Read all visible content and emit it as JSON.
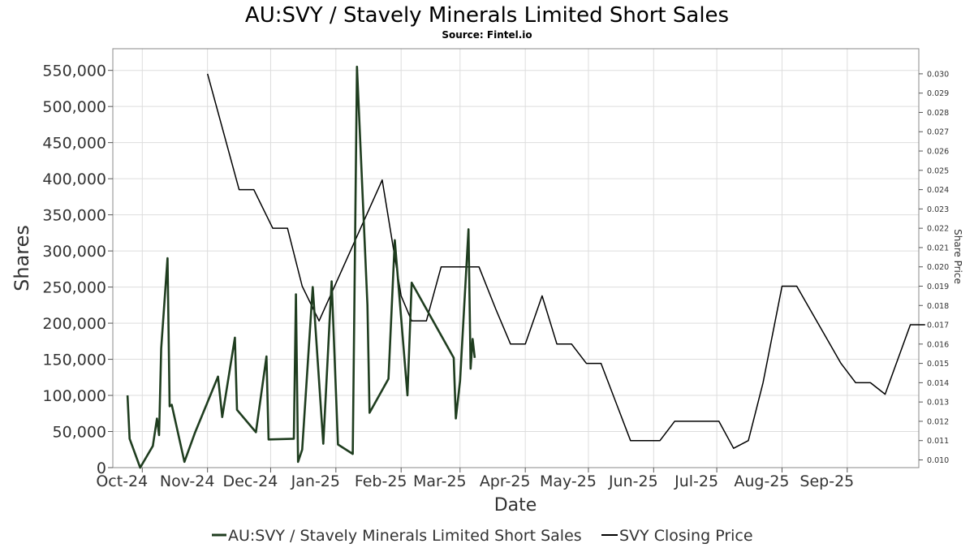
{
  "chart_data": {
    "type": "line",
    "title": "AU:SVY / Stavely Minerals Limited Short Sales",
    "subtitle": "Source: Fintel.io",
    "xlabel": "Date",
    "ylabel": "Shares",
    "y2label": "Share Price",
    "grid": true,
    "legend_placement": "bottom",
    "x_range": [
      "2024-09-17",
      "2025-10-05"
    ],
    "x_ticks": [
      {
        "date": "2024-10-01",
        "label": "Oct-24"
      },
      {
        "date": "2024-11-01",
        "label": "Nov-24"
      },
      {
        "date": "2024-12-01",
        "label": "Dec-24"
      },
      {
        "date": "2025-01-01",
        "label": "Jan-25"
      },
      {
        "date": "2025-02-01",
        "label": "Feb-25"
      },
      {
        "date": "2025-03-01",
        "label": "Mar-25"
      },
      {
        "date": "2025-04-01",
        "label": "Apr-25"
      },
      {
        "date": "2025-05-01",
        "label": "May-25"
      },
      {
        "date": "2025-06-01",
        "label": "Jun-25"
      },
      {
        "date": "2025-07-01",
        "label": "Jul-25"
      },
      {
        "date": "2025-08-01",
        "label": "Aug-25"
      },
      {
        "date": "2025-09-01",
        "label": "Sep-25"
      }
    ],
    "y_range": [
      0,
      580000
    ],
    "y_ticks": [
      {
        "value": 0,
        "label": "0"
      },
      {
        "value": 50000,
        "label": "50,000"
      },
      {
        "value": 100000,
        "label": "100,000"
      },
      {
        "value": 150000,
        "label": "150,000"
      },
      {
        "value": 200000,
        "label": "200,000"
      },
      {
        "value": 250000,
        "label": "250,000"
      },
      {
        "value": 300000,
        "label": "300,000"
      },
      {
        "value": 350000,
        "label": "350,000"
      },
      {
        "value": 400000,
        "label": "400,000"
      },
      {
        "value": 450000,
        "label": "450,000"
      },
      {
        "value": 500000,
        "label": "500,000"
      },
      {
        "value": 550000,
        "label": "550,000"
      }
    ],
    "y2_range": [
      0.0096,
      0.0313
    ],
    "y2_ticks": [
      {
        "value": 0.01,
        "label": "0.010"
      },
      {
        "value": 0.011,
        "label": "0.011"
      },
      {
        "value": 0.012,
        "label": "0.012"
      },
      {
        "value": 0.013,
        "label": "0.013"
      },
      {
        "value": 0.014,
        "label": "0.014"
      },
      {
        "value": 0.015,
        "label": "0.015"
      },
      {
        "value": 0.016,
        "label": "0.016"
      },
      {
        "value": 0.017,
        "label": "0.017"
      },
      {
        "value": 0.018,
        "label": "0.018"
      },
      {
        "value": 0.019,
        "label": "0.019"
      },
      {
        "value": 0.02,
        "label": "0.020"
      },
      {
        "value": 0.021,
        "label": "0.021"
      },
      {
        "value": 0.022,
        "label": "0.022"
      },
      {
        "value": 0.023,
        "label": "0.023"
      },
      {
        "value": 0.024,
        "label": "0.024"
      },
      {
        "value": 0.025,
        "label": "0.025"
      },
      {
        "value": 0.026,
        "label": "0.026"
      },
      {
        "value": 0.027,
        "label": "0.027"
      },
      {
        "value": 0.028,
        "label": "0.028"
      },
      {
        "value": 0.029,
        "label": "0.029"
      },
      {
        "value": 0.03,
        "label": "0.030"
      }
    ],
    "series": [
      {
        "name": "AU:SVY / Stavely Minerals Limited Short Sales",
        "axis": "left",
        "color": "#1f3d1f",
        "points": [
          [
            "2024-09-24",
            100000
          ],
          [
            "2024-09-25",
            40000
          ],
          [
            "2024-09-30",
            0
          ],
          [
            "2024-10-06",
            30000
          ],
          [
            "2024-10-08",
            68000
          ],
          [
            "2024-10-09",
            45000
          ],
          [
            "2024-10-10",
            165000
          ],
          [
            "2024-10-13",
            290000
          ],
          [
            "2024-10-14",
            85000
          ],
          [
            "2024-10-15",
            87000
          ],
          [
            "2024-10-21",
            8000
          ],
          [
            "2024-10-26",
            48000
          ],
          [
            "2024-11-06",
            126000
          ],
          [
            "2024-11-08",
            70000
          ],
          [
            "2024-11-14",
            180000
          ],
          [
            "2024-11-15",
            80000
          ],
          [
            "2024-11-24",
            49000
          ],
          [
            "2024-11-29",
            154000
          ],
          [
            "2024-11-30",
            39000
          ],
          [
            "2024-12-12",
            40000
          ],
          [
            "2024-12-13",
            240000
          ],
          [
            "2024-12-14",
            8000
          ],
          [
            "2024-12-16",
            25000
          ],
          [
            "2024-12-21",
            250000
          ],
          [
            "2024-12-26",
            33000
          ],
          [
            "2024-12-30",
            258000
          ],
          [
            "2025-01-02",
            32000
          ],
          [
            "2025-01-09",
            19000
          ],
          [
            "2025-01-11",
            555000
          ],
          [
            "2025-01-16",
            225000
          ],
          [
            "2025-01-17",
            76000
          ],
          [
            "2025-01-26",
            123000
          ],
          [
            "2025-01-29",
            315000
          ],
          [
            "2025-02-04",
            100000
          ],
          [
            "2025-02-06",
            256000
          ],
          [
            "2025-02-26",
            152000
          ],
          [
            "2025-02-27",
            68000
          ],
          [
            "2025-03-01",
            120000
          ],
          [
            "2025-03-05",
            330000
          ],
          [
            "2025-03-06",
            137000
          ],
          [
            "2025-03-07",
            178000
          ],
          [
            "2025-03-08",
            152000
          ]
        ]
      },
      {
        "name": "SVY Closing Price",
        "axis": "right",
        "color": "#000000",
        "points": [
          [
            "2024-11-01",
            0.03
          ],
          [
            "2024-11-16",
            0.024
          ],
          [
            "2024-11-23",
            0.024
          ],
          [
            "2024-12-02",
            0.022
          ],
          [
            "2024-12-09",
            0.022
          ],
          [
            "2024-12-16",
            0.019
          ],
          [
            "2024-12-24",
            0.0172
          ],
          [
            "2025-01-23",
            0.0245
          ],
          [
            "2025-02-01",
            0.0185
          ],
          [
            "2025-02-06",
            0.0172
          ],
          [
            "2025-02-13",
            0.0172
          ],
          [
            "2025-02-20",
            0.02
          ],
          [
            "2025-03-10",
            0.02
          ],
          [
            "2025-03-18",
            0.0178
          ],
          [
            "2025-03-25",
            0.016
          ],
          [
            "2025-04-01",
            0.016
          ],
          [
            "2025-04-09",
            0.0185
          ],
          [
            "2025-04-16",
            0.016
          ],
          [
            "2025-04-23",
            0.016
          ],
          [
            "2025-04-30",
            0.015
          ],
          [
            "2025-05-07",
            0.015
          ],
          [
            "2025-05-21",
            0.011
          ],
          [
            "2025-06-04",
            0.011
          ],
          [
            "2025-06-11",
            0.012
          ],
          [
            "2025-06-18",
            0.012
          ],
          [
            "2025-07-02",
            0.012
          ],
          [
            "2025-07-09",
            0.0106
          ],
          [
            "2025-07-16",
            0.011
          ],
          [
            "2025-07-23",
            0.014
          ],
          [
            "2025-08-01",
            0.019
          ],
          [
            "2025-08-08",
            0.019
          ],
          [
            "2025-08-29",
            0.015
          ],
          [
            "2025-09-05",
            0.014
          ],
          [
            "2025-09-12",
            0.014
          ],
          [
            "2025-09-19",
            0.0134
          ],
          [
            "2025-10-01",
            0.017
          ],
          [
            "2025-10-08",
            0.017
          ]
        ]
      }
    ]
  }
}
